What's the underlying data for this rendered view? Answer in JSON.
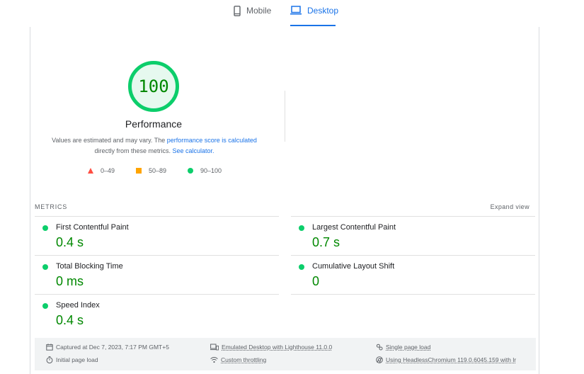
{
  "tabs": [
    {
      "label": "Mobile",
      "icon": "phone-icon",
      "active": false
    },
    {
      "label": "Desktop",
      "icon": "laptop-icon",
      "active": true
    }
  ],
  "performance": {
    "score": "100",
    "title": "Performance",
    "desc_prefix": "Values are estimated and may vary. The ",
    "desc_link1": "performance score is calculated",
    "desc_middle": " directly from these metrics. ",
    "desc_link2": "See calculator."
  },
  "legend": [
    {
      "range": "0–49",
      "shape": "triangle",
      "color": "#ff4e42"
    },
    {
      "range": "50–89",
      "shape": "square",
      "color": "#ffa400"
    },
    {
      "range": "90–100",
      "shape": "circle",
      "color": "#0cce6b"
    }
  ],
  "metrics": {
    "label": "METRICS",
    "expand_label": "Expand view",
    "items": [
      {
        "name": "First Contentful Paint",
        "value": "0.4 s"
      },
      {
        "name": "Largest Contentful Paint",
        "value": "0.7 s"
      },
      {
        "name": "Total Blocking Time",
        "value": "0 ms"
      },
      {
        "name": "Cumulative Layout Shift",
        "value": "0"
      },
      {
        "name": "Speed Index",
        "value": "0.4 s"
      }
    ]
  },
  "footer": {
    "captured": "Captured at Dec 7, 2023, 7:17 PM GMT+5",
    "initial_load": "Initial page load",
    "emulated": "Emulated Desktop with Lighthouse 11.0.0",
    "throttling": "Custom throttling",
    "single_load": "Single page load",
    "browser": "Using HeadlessChromium 119.0.6045.159 with lr"
  },
  "colors": {
    "accent": "#1a73e8",
    "pass": "#0cce6b",
    "pass_text": "#008800"
  }
}
